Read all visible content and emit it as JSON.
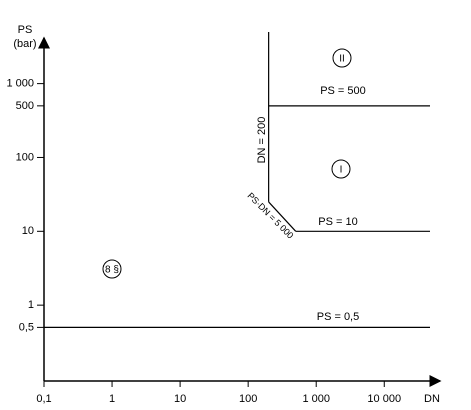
{
  "chart_data": {
    "type": "line",
    "log_x": true,
    "log_y": true,
    "x_label": "DN",
    "y_label": "PS",
    "y_unit": "(bar)",
    "xlim": [
      0.1,
      47000
    ],
    "ylim": [
      0.1,
      5000
    ],
    "xticks": [
      {
        "value": 0.1,
        "label": "0,1"
      },
      1,
      10,
      100,
      {
        "value": 1000,
        "label": "1 000"
      },
      {
        "value": 10000,
        "label": "10 000"
      }
    ],
    "yticks": [
      {
        "value": 0.5,
        "label": "0,5"
      },
      1,
      10,
      100,
      500,
      {
        "value": 1000,
        "label": "1 000"
      }
    ],
    "series": [
      {
        "name": "PS = 0,5",
        "color": "#000000",
        "x": [
          0.1,
          47000
        ],
        "values": [
          0.5,
          0.5
        ]
      },
      {
        "name": "PS = 500",
        "color": "#000000",
        "x": [
          200,
          47000
        ],
        "values": [
          500,
          500
        ]
      },
      {
        "name": "PS = 10",
        "color": "#000000",
        "x": [
          500,
          47000
        ],
        "values": [
          10,
          10
        ]
      },
      {
        "name": "DN = 200",
        "color": "#000000",
        "x": [
          200,
          200
        ],
        "values": [
          25,
          5000
        ]
      },
      {
        "name": "PS·DN = 5 000",
        "color": "#000000",
        "x": [
          200,
          500
        ],
        "values": [
          25,
          10
        ]
      }
    ],
    "annotations": [
      "II",
      "I",
      "8 §"
    ]
  }
}
